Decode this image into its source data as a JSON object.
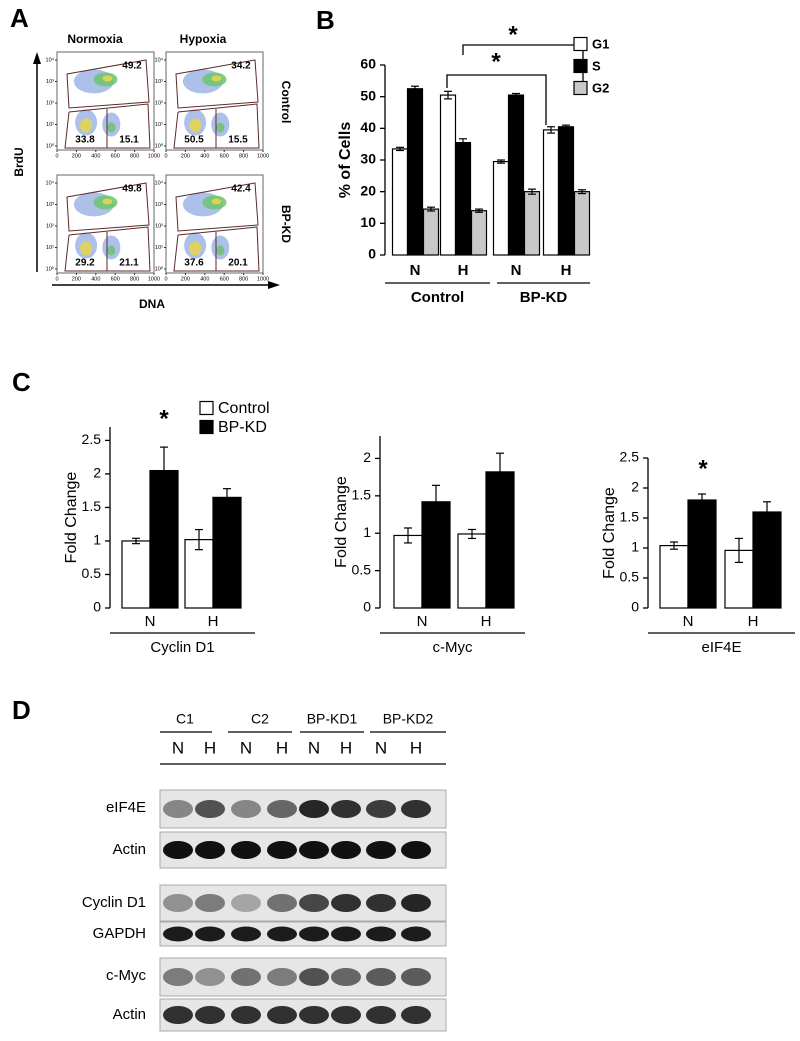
{
  "panels": {
    "a": "A",
    "b": "B",
    "c": "C",
    "d": "D"
  },
  "flow": {
    "columns": [
      "Normoxia",
      "Hypoxia"
    ],
    "rows": [
      "Control",
      "BP-KD"
    ],
    "y_label": "BrdU",
    "x_label": "DNA",
    "xticks": [
      0,
      200,
      400,
      600,
      800,
      1000
    ],
    "yticks": [
      {
        "value": 0,
        "label": "10⁰"
      },
      {
        "value": 1,
        "label": "10¹"
      },
      {
        "value": 2,
        "label": "10²"
      },
      {
        "value": 3,
        "label": "10³"
      },
      {
        "value": 4,
        "label": "10⁴"
      }
    ],
    "plots": [
      {
        "upper": 49.2,
        "lower_left": 33.8,
        "lower_right": 15.1
      },
      {
        "upper": 34.2,
        "lower_left": 50.5,
        "lower_right": 15.5
      },
      {
        "upper": 49.8,
        "lower_left": 29.2,
        "lower_right": 21.1
      },
      {
        "upper": 42.4,
        "lower_left": 37.6,
        "lower_right": 20.1
      }
    ]
  },
  "chart_data": [
    {
      "type": "bar",
      "y_label": "% of Cells",
      "categories": [
        "N",
        "H",
        "N",
        "H"
      ],
      "groups": [
        "Control",
        "BP-KD"
      ],
      "series": [
        {
          "name": "G1",
          "color": "#ffffff",
          "values": [
            33.5,
            50.5,
            29.5,
            39.5
          ],
          "errors": [
            0.5,
            1.2,
            0.5,
            1
          ]
        },
        {
          "name": "S",
          "color": "#000000",
          "values": [
            52.5,
            35.5,
            50.5,
            40.5
          ],
          "errors": [
            0.8,
            1.2,
            0.5,
            0.5
          ]
        },
        {
          "name": "G2",
          "color": "#c8c8c8",
          "values": [
            14.5,
            14,
            20,
            20
          ],
          "errors": [
            0.6,
            0.5,
            0.8,
            0.6
          ]
        }
      ],
      "ylim": [
        0,
        60
      ],
      "yticks": [
        0,
        10,
        20,
        30,
        40,
        50,
        60
      ],
      "legend": "upper right",
      "annotations": [
        "*",
        "*"
      ]
    },
    {
      "type": "bar",
      "y_label": "Fold Change",
      "categories": [
        "N",
        "H"
      ],
      "groups": [
        "Cyclin D1"
      ],
      "series": [
        {
          "name": "Control",
          "color": "#ffffff",
          "values": [
            1.0,
            1.02
          ],
          "errors": [
            0.04,
            0.15
          ]
        },
        {
          "name": "BP-KD",
          "color": "#000000",
          "values": [
            2.05,
            1.65
          ],
          "errors": [
            0.35,
            0.13
          ]
        }
      ],
      "ylim": [
        0,
        2.7
      ],
      "yticks": [
        0,
        0.5,
        1,
        1.5,
        2,
        2.5
      ],
      "legend": "upper right",
      "annotations": [
        "*"
      ]
    },
    {
      "type": "bar",
      "y_label": "Fold Change",
      "categories": [
        "N",
        "H"
      ],
      "groups": [
        "c-Myc"
      ],
      "series": [
        {
          "color": "#ffffff",
          "values": [
            0.97,
            0.99
          ],
          "errors": [
            0.1,
            0.06
          ]
        },
        {
          "color": "#000000",
          "values": [
            1.42,
            1.82
          ],
          "errors": [
            0.22,
            0.25
          ]
        }
      ],
      "ylim": [
        0,
        2.3
      ],
      "yticks": [
        0,
        0.5,
        1,
        1.5,
        2
      ]
    },
    {
      "type": "bar",
      "y_label": "Fold Change",
      "categories": [
        "N",
        "H"
      ],
      "groups": [
        "eIF4E"
      ],
      "series": [
        {
          "color": "#ffffff",
          "values": [
            1.04,
            0.96
          ],
          "errors": [
            0.06,
            0.2
          ]
        },
        {
          "color": "#000000",
          "values": [
            1.8,
            1.6
          ],
          "errors": [
            0.1,
            0.17
          ]
        }
      ],
      "ylim": [
        0,
        2.5
      ],
      "yticks": [
        0,
        0.5,
        1,
        1.5,
        2,
        2.5
      ],
      "annotations": [
        "*"
      ]
    }
  ],
  "blot": {
    "groups": [
      "C1",
      "C2",
      "BP-KD1",
      "BP-KD2"
    ],
    "lanes": [
      "N",
      "H",
      "N",
      "H",
      "N",
      "H",
      "N",
      "H"
    ],
    "rows": [
      "eIF4E",
      "Actin",
      "Cyclin D1",
      "GAPDH",
      "c-Myc",
      "Actin"
    ]
  }
}
